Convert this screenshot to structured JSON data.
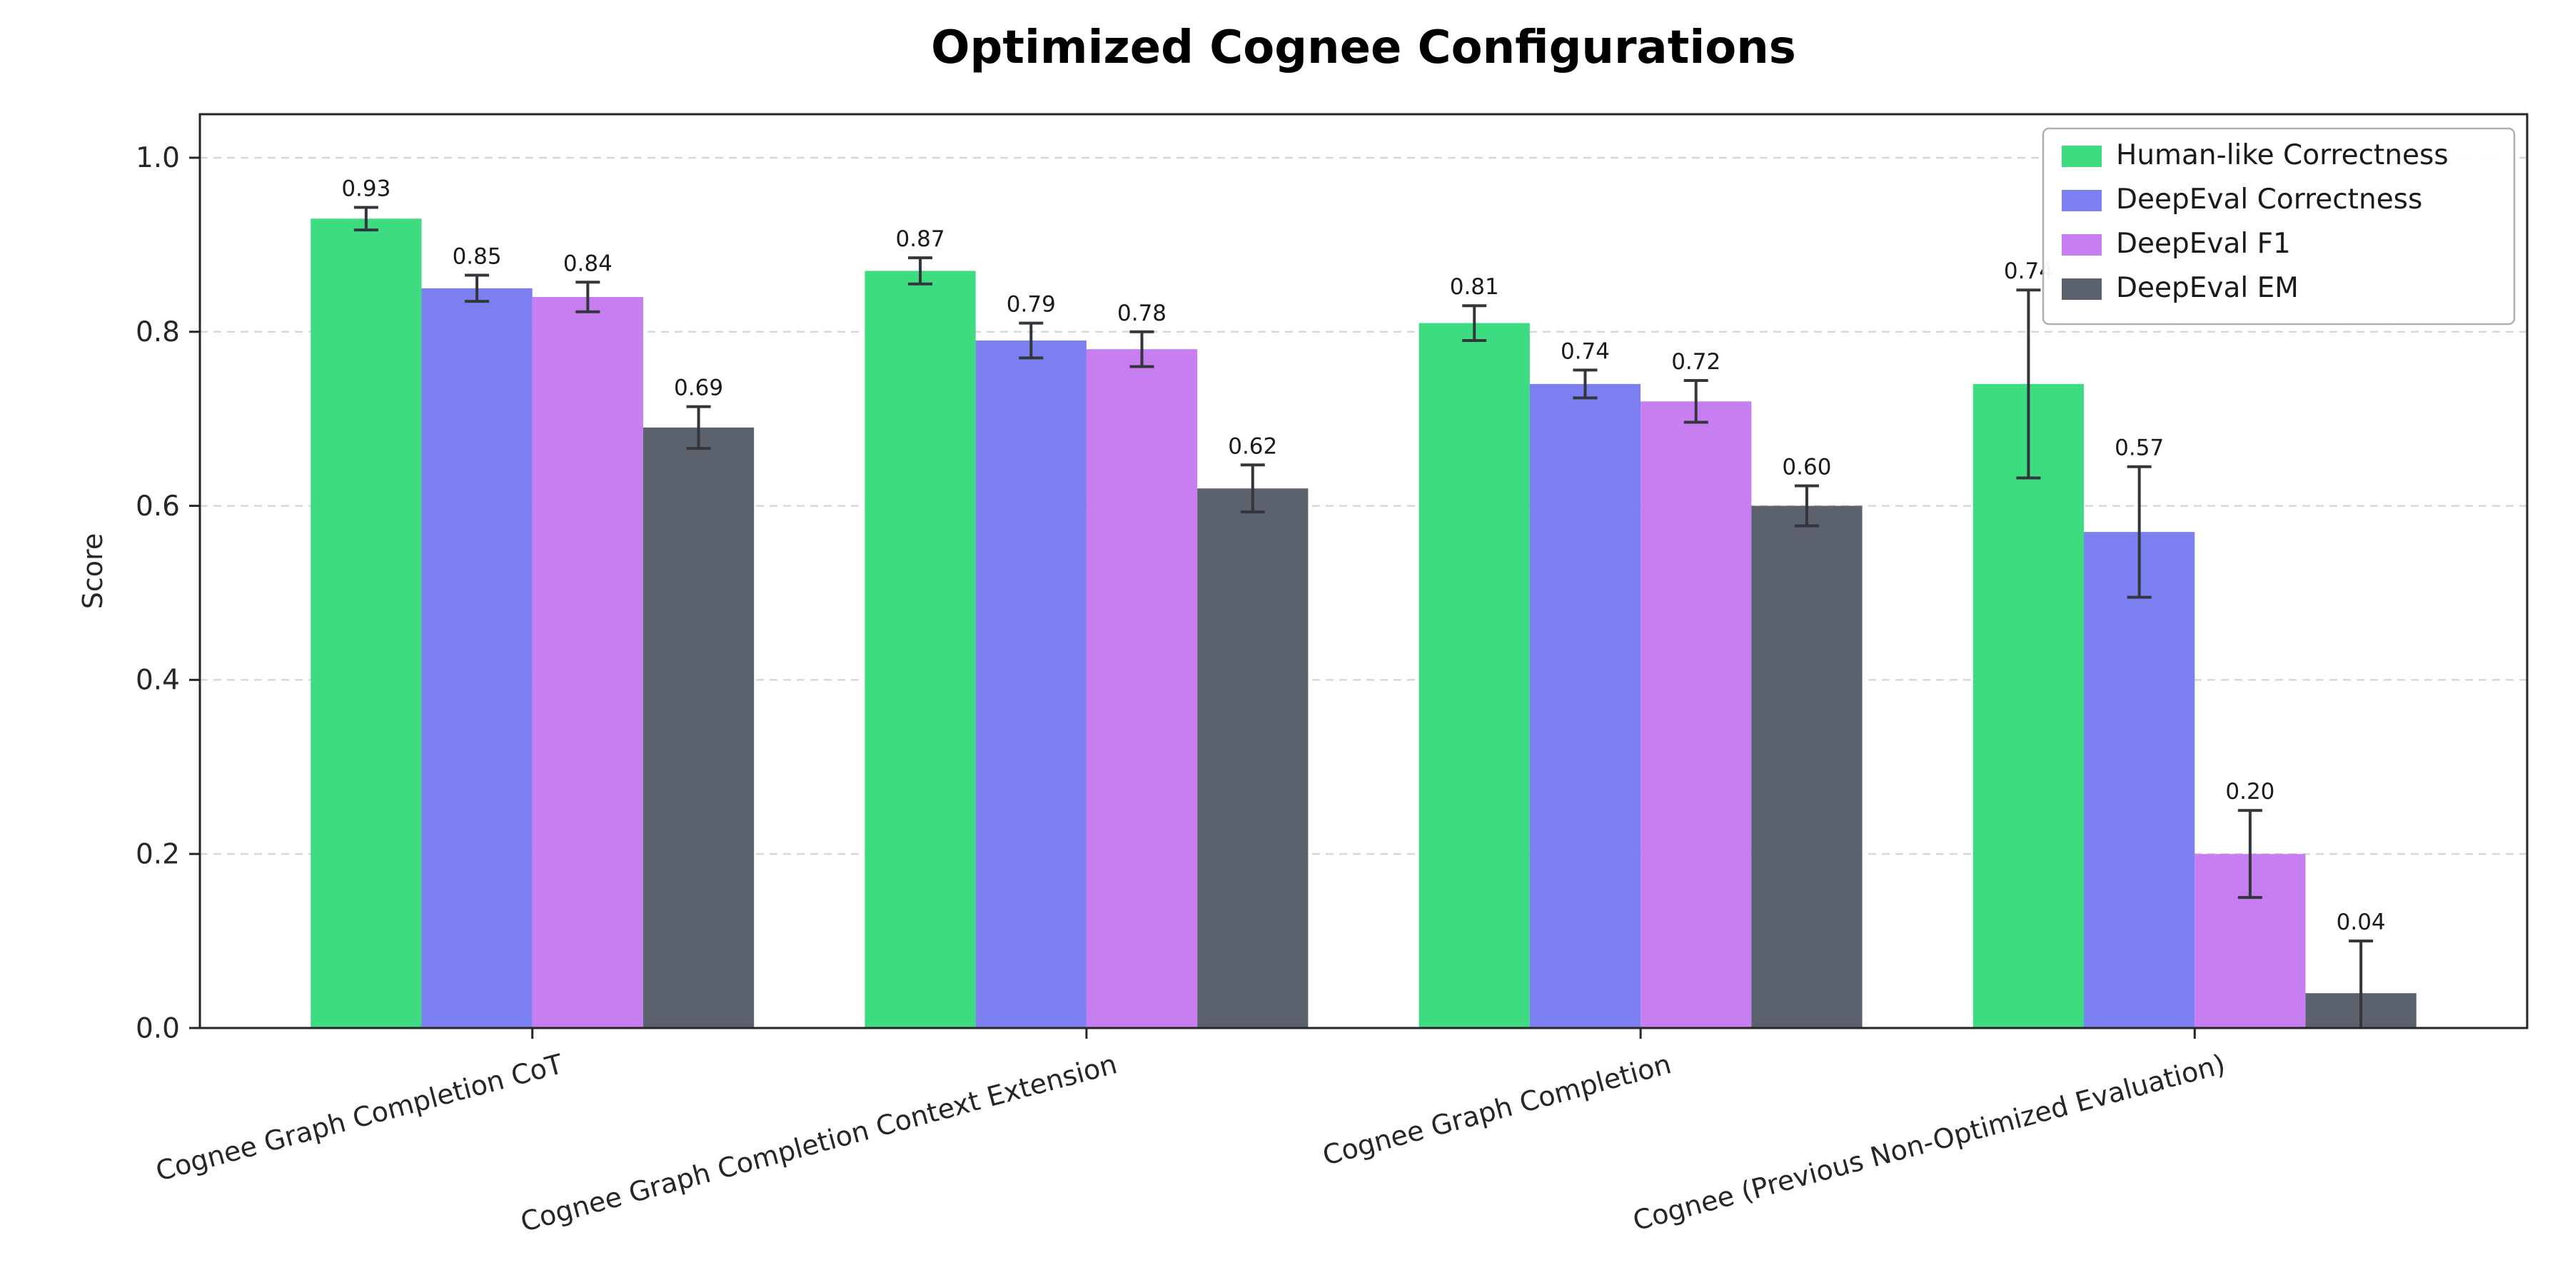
{
  "chart_data": {
    "type": "bar",
    "title": "Optimized Cognee Configurations",
    "xlabel": "",
    "ylabel": "Score",
    "ylim": [
      0,
      1.05
    ],
    "yticks": [
      0.0,
      0.2,
      0.4,
      0.6,
      0.8,
      1.0
    ],
    "grid": "horizontal-dashed",
    "legend_position": "upper-right",
    "categories": [
      "Cognee Graph Completion CoT",
      "Cognee Graph Completion Context Extension",
      "Cognee Graph Completion",
      "Cognee (Previous Non-Optimized Evaluation)"
    ],
    "series": [
      {
        "name": "Human-like Correctness",
        "color": "#3edc81",
        "values": [
          0.93,
          0.87,
          0.81,
          0.74
        ],
        "errors": [
          0.013,
          0.015,
          0.02,
          0.108
        ]
      },
      {
        "name": "DeepEval Correctness",
        "color": "#7b7ff0",
        "values": [
          0.85,
          0.79,
          0.74,
          0.57
        ],
        "errors": [
          0.015,
          0.02,
          0.016,
          0.075
        ]
      },
      {
        "name": "DeepEval F1",
        "color": "#c77ef0",
        "values": [
          0.84,
          0.78,
          0.72,
          0.2
        ],
        "errors": [
          0.017,
          0.02,
          0.024,
          0.05
        ]
      },
      {
        "name": "DeepEval EM",
        "color": "#5b616d",
        "values": [
          0.69,
          0.62,
          0.6,
          0.04
        ],
        "errors": [
          0.024,
          0.027,
          0.023,
          0.06
        ]
      }
    ],
    "colors": {
      "grid": "#d8d8d8",
      "spine": "#262626",
      "error_bar": "#33363b",
      "tick_label": "#262626",
      "value_label": "#1a1a1a",
      "legend_border": "#b0b0b0",
      "background": "#ffffff"
    }
  }
}
